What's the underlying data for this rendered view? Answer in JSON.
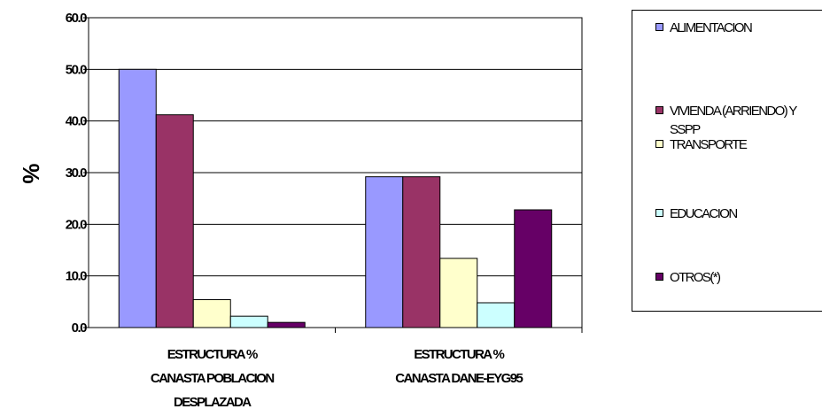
{
  "chart_data": {
    "type": "bar",
    "title": "",
    "ylabel": "%",
    "xlabel": "",
    "ylim": [
      0,
      60
    ],
    "yticks": [
      "0.0",
      "10.0",
      "20.0",
      "30.0",
      "40.0",
      "50.0",
      "60.0"
    ],
    "grid": true,
    "legend_position": "right",
    "categories": [
      [
        "ESTRUCTURA %",
        "CANASTA POBLACION",
        "DESPLAZADA"
      ],
      [
        "ESTRUCTURA %",
        "CANASTA DANE-EYG95"
      ]
    ],
    "series": [
      {
        "name": "ALIMENTACION",
        "color": "#9999ff",
        "values": [
          50.0,
          29.2
        ]
      },
      {
        "name": "VIVIENDA (ARRIENDO) Y SSPP",
        "color": "#993366",
        "values": [
          41.2,
          29.2
        ]
      },
      {
        "name": "TRANSPORTE",
        "color": "#ffffcc",
        "values": [
          5.4,
          13.4
        ]
      },
      {
        "name": "EDUCACION",
        "color": "#ccffff",
        "values": [
          2.2,
          4.8
        ]
      },
      {
        "name": "OTROS(*)",
        "color": "#660066",
        "values": [
          1.0,
          22.8
        ]
      }
    ]
  }
}
